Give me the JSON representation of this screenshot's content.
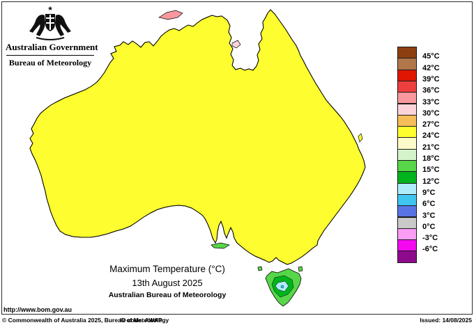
{
  "header": {
    "government": "Australian Government",
    "bureau": "Bureau of Meteorology"
  },
  "titleBlock": {
    "title": "Maximum Temperature (°C)",
    "date": "13th August 2025",
    "org": "Australian Bureau of Meteorology"
  },
  "legend": {
    "items": [
      {
        "color": "#8d3f12",
        "label": "45°C"
      },
      {
        "color": "#b1764a",
        "label": "42°C"
      },
      {
        "color": "#de1602",
        "label": "39°C"
      },
      {
        "color": "#ee3f3f",
        "label": "36°C"
      },
      {
        "color": "#f9989e",
        "label": "33°C"
      },
      {
        "color": "#fbd4da",
        "label": "30°C"
      },
      {
        "color": "#f6bd59",
        "label": "27°C"
      },
      {
        "color": "#fdfd2f",
        "label": "24°C"
      },
      {
        "color": "#fdfbc9",
        "label": "21°C"
      },
      {
        "color": "#d5f3cb",
        "label": "18°C"
      },
      {
        "color": "#57d649",
        "label": "15°C"
      },
      {
        "color": "#00b41e",
        "label": "12°C"
      },
      {
        "color": "#aeecfc",
        "label": "9°C"
      },
      {
        "color": "#3fc5f0",
        "label": "6°C"
      },
      {
        "color": "#5873e4",
        "label": "3°C"
      },
      {
        "color": "#c9c9c9",
        "label": "0°C"
      },
      {
        "color": "#fa9df5",
        "label": "-3°C"
      },
      {
        "color": "#f408f0",
        "label": "-6°C"
      },
      {
        "color": "#8d0a8d",
        "label": ""
      }
    ]
  },
  "palette": {
    "c45": "#8d3f12",
    "c42": "#b1764a",
    "c39": "#de1602",
    "c36": "#ee3f3f",
    "c33": "#f9989e",
    "c30": "#fbd4da",
    "c27": "#f6bd59",
    "c24": "#fdfd2f",
    "c21": "#fdfbc9",
    "c18": "#d5f3cb",
    "c15": "#57d649",
    "c12": "#00b41e",
    "c9": "#aeecfc",
    "c6": "#3fc5f0",
    "c3": "#5873e4",
    "lake": "#ffffff"
  },
  "footer": {
    "url": "http://www.bom.gov.au",
    "copyright": "© Commonwealth of Australia 2025, Bureau of Meteorology",
    "idCode": "ID code: AWAP",
    "issued": "Issued: 14/08/2025"
  }
}
